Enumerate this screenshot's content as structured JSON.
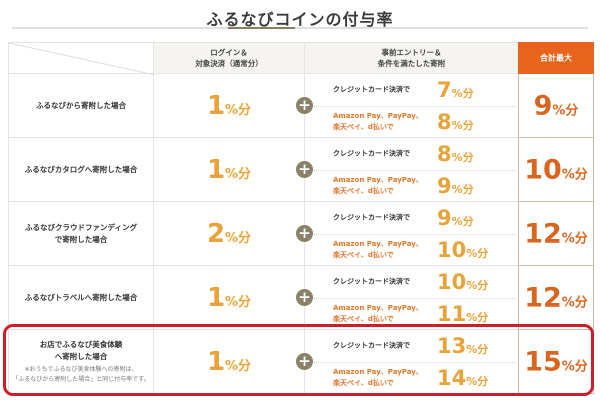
{
  "title": "ふるなびコインの付与率",
  "colors": {
    "accent_orange": "#e8641c",
    "rate_yellow": "#e8a33a",
    "total_orange": "#d9661e",
    "highlight_red": "#cc1f2c"
  },
  "header": {
    "login": "ログイン＆\n対象決済（通常分）",
    "entry": "事前エントリー＆\n条件を満たした寄附",
    "total": "合計最大"
  },
  "unit": "%分",
  "plus_icon": "+",
  "rows": [
    {
      "label": "ふるなびから寄附した場合",
      "note": "",
      "login": "1",
      "credit_label": "クレジットカード決済で",
      "credit": "7",
      "pay_label": "Amazon Pay、PayPay、\n楽天ペイ、d払いで",
      "pay": "8",
      "total": "9"
    },
    {
      "label": "ふるなびカタログへ寄附した場合",
      "note": "",
      "login": "1",
      "credit_label": "クレジットカード決済で",
      "credit": "8",
      "pay_label": "Amazon Pay、PayPay、\n楽天ペイ、d払いで",
      "pay": "9",
      "total": "10"
    },
    {
      "label": "ふるなびクラウドファンディング\nで寄附した場合",
      "note": "",
      "login": "2",
      "credit_label": "クレジットカード決済で",
      "credit": "9",
      "pay_label": "Amazon Pay、PayPay、\n楽天ペイ、d払いで",
      "pay": "10",
      "total": "12"
    },
    {
      "label": "ふるなびトラベルへ寄附した場合",
      "note": "",
      "login": "1",
      "credit_label": "クレジットカード決済で",
      "credit": "10",
      "pay_label": "Amazon Pay、PayPay、\n楽天ペイ、d払いで",
      "pay": "11",
      "total": "12"
    },
    {
      "label": "お店でふるなび美食体験\nへ寄附した場合",
      "note": "※おうちでふるなび美食体験への寄附は、\n「ふるなびから寄附した場合」と同じ付与率です。",
      "login": "1",
      "credit_label": "クレジットカード決済で",
      "credit": "13",
      "pay_label": "Amazon Pay、PayPay、\n楽天ペイ、d払いで",
      "pay": "14",
      "total": "15"
    }
  ]
}
